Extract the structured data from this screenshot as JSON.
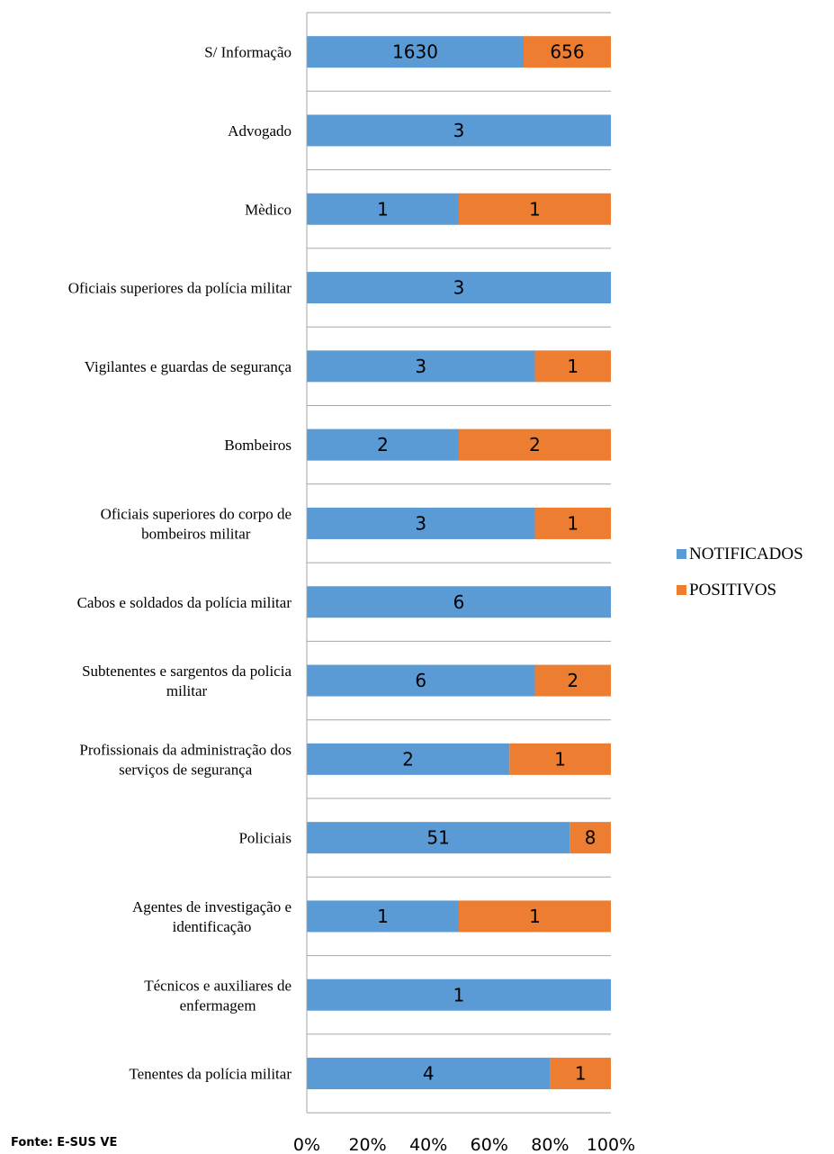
{
  "chart_data": {
    "type": "bar",
    "orientation": "horizontal",
    "stacked": "percent",
    "categories": [
      "S/ Informação",
      "Advogado",
      "Mèdico",
      "Oficiais superiores da polícia militar",
      "Vigilantes e guardas de segurança",
      "Bombeiros",
      "Oficiais superiores do corpo de bombeiros militar",
      "Cabos e soldados da polícia militar",
      "Subtenentes e sargentos da policia militar",
      "Profissionais da administração dos serviços de segurança",
      "Policiais",
      "Agentes de investigação e identificação",
      "Técnicos e auxiliares de enfermagem",
      "Tenentes da polícia militar"
    ],
    "category_lines": [
      [
        "S/ Informação"
      ],
      [
        "Advogado"
      ],
      [
        "Mèdico"
      ],
      [
        "Oficiais superiores da polícia militar"
      ],
      [
        "Vigilantes e guardas de segurança"
      ],
      [
        "Bombeiros"
      ],
      [
        "Oficiais superiores do corpo de",
        "bombeiros militar"
      ],
      [
        "Cabos e soldados da polícia militar"
      ],
      [
        "Subtenentes e sargentos da policia",
        "militar"
      ],
      [
        "Profissionais da administração dos",
        "serviços de segurança"
      ],
      [
        "Policiais"
      ],
      [
        "Agentes de investigação e",
        "identificação"
      ],
      [
        "Técnicos e auxiliares de",
        "enfermagem"
      ],
      [
        "Tenentes da polícia militar"
      ]
    ],
    "series": [
      {
        "name": "NOTIFICADOS",
        "color": "#5B9BD5",
        "values": [
          1630,
          3,
          1,
          3,
          3,
          2,
          3,
          6,
          6,
          2,
          51,
          1,
          1,
          4
        ]
      },
      {
        "name": "POSITIVOS",
        "color": "#ED7D31",
        "values": [
          656,
          0,
          1,
          0,
          1,
          2,
          1,
          0,
          2,
          1,
          8,
          1,
          0,
          1
        ]
      }
    ],
    "x_ticks": [
      "0%",
      "20%",
      "40%",
      "60%",
      "80%",
      "100%"
    ],
    "xlim": [
      0,
      100
    ],
    "grid": false,
    "legend_position": "right"
  },
  "source_note": "Fonte: E-SUS VE"
}
